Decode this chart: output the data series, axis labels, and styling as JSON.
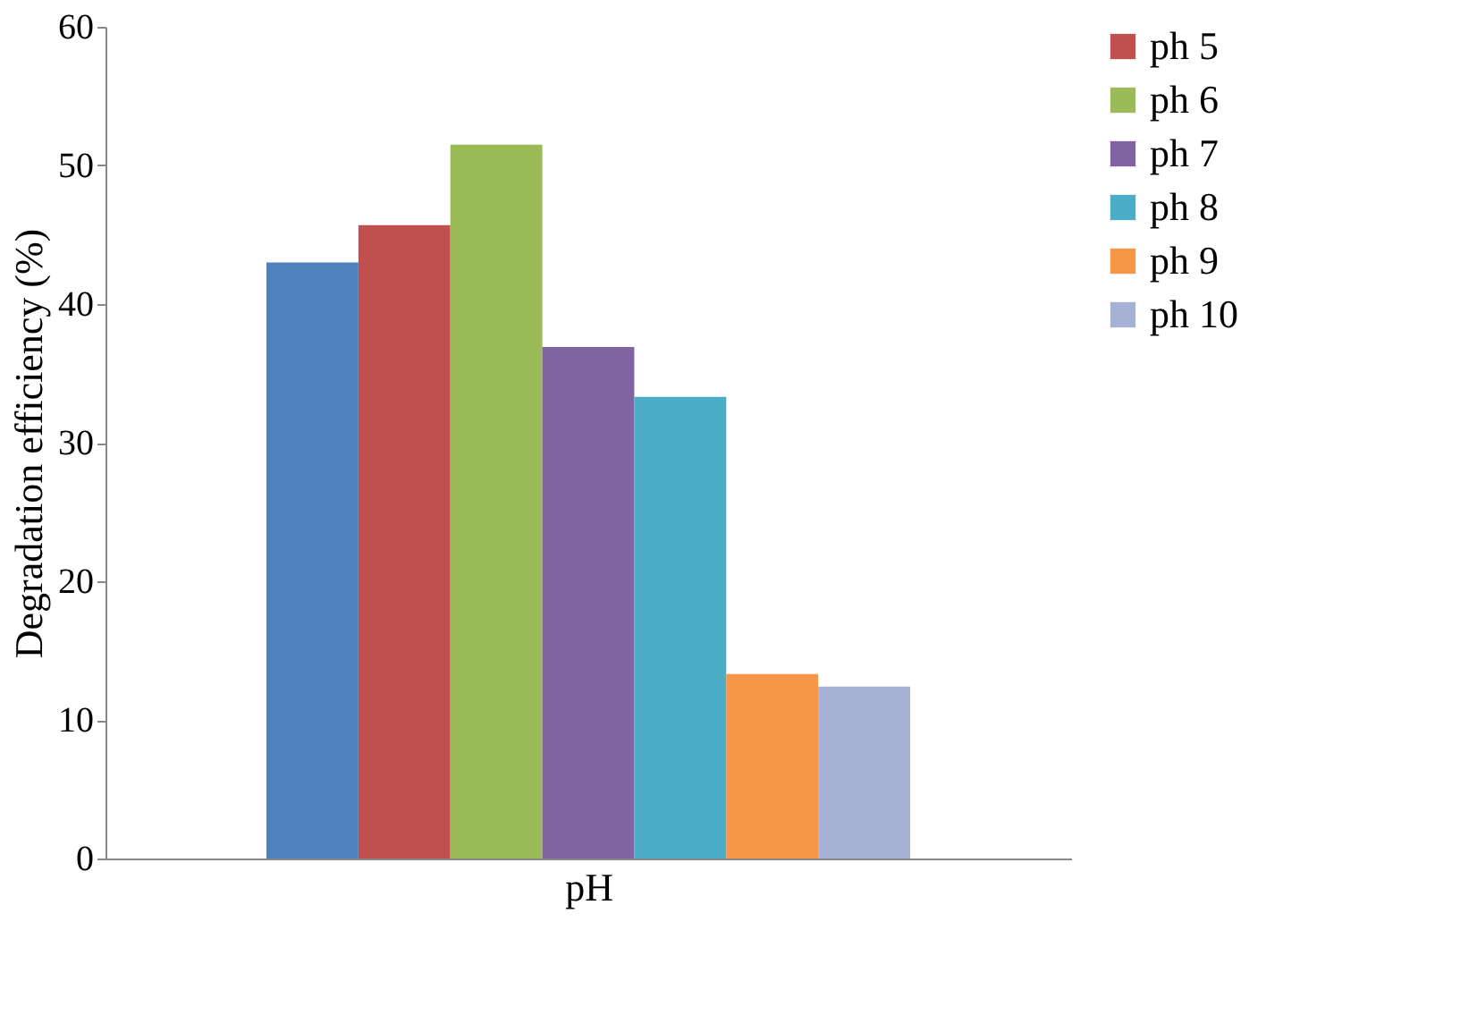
{
  "chart_data": {
    "type": "bar",
    "xlabel": "pH",
    "ylabel": "Degradation efficiency (%)",
    "categories": [
      null
    ],
    "series": [
      {
        "color": "#4f81bd",
        "values": [
          43.0
        ]
      },
      {
        "name": "ph 5",
        "color": "#c0504d",
        "values": [
          45.7
        ]
      },
      {
        "name": "ph 6",
        "color": "#9bbb59",
        "values": [
          51.5
        ]
      },
      {
        "name": "ph 7",
        "color": "#8064a2",
        "values": [
          36.9
        ]
      },
      {
        "name": "ph 8",
        "color": "#4bacc6",
        "values": [
          33.3
        ]
      },
      {
        "name": "ph 9",
        "color": "#f79646",
        "values": [
          13.3
        ]
      },
      {
        "name": "ph 10",
        "color": "#a5b2d6",
        "values": [
          12.4
        ]
      }
    ],
    "ylim": [
      0,
      60
    ],
    "yticks": [
      0,
      10,
      20,
      30,
      40,
      50,
      60
    ],
    "grid": false,
    "legend": "right"
  }
}
